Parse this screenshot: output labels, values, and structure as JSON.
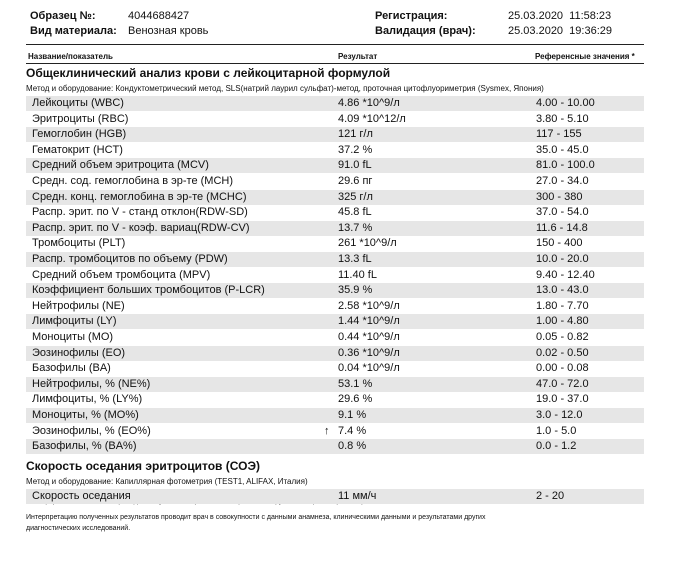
{
  "header": {
    "sample_label": "Образец №:",
    "sample_value": "4044688427",
    "material_label": "Вид материала:",
    "material_value": "Венозная кровь",
    "registration_label": "Регистрация:",
    "registration_value": "25.03.2020  11:58:23",
    "validation_label": "Валидация (врач):",
    "validation_value": "25.03.2020  19:36:29"
  },
  "columns": {
    "name": "Название/показатель",
    "result": "Результат",
    "reference": "Референсные значения *"
  },
  "sections": [
    {
      "title": "Общеклинический анализ крови с лейкоцитарной формулой",
      "method": "Метод и оборудование:  Кондуктометрический метод, SLS(натрий лаурил сульфат)-метод, проточная цитофлуориметрия (Sysmex, Япония)",
      "rows": [
        {
          "name": "Лейкоциты (WBC)",
          "result": "4.86 *10^9/л",
          "reference": "4.00 - 10.00"
        },
        {
          "name": "Эритроциты (RBC)",
          "result": "4.09 *10^12/л",
          "reference": "3.80 - 5.10"
        },
        {
          "name": "Гемоглобин (HGB)",
          "result": "121 г/л",
          "reference": "117 - 155"
        },
        {
          "name": "Гематокрит (HCT)",
          "result": "37.2 %",
          "reference": "35.0 - 45.0"
        },
        {
          "name": "Средний объем эритроцита (MCV)",
          "result": "91.0 fL",
          "reference": "81.0 - 100.0"
        },
        {
          "name": "Средн. сод. гемоглобина в эр-те (MCH)",
          "result": "29.6 пг",
          "reference": "27.0 - 34.0"
        },
        {
          "name": "Средн. конц. гемоглобина в эр-те (MCHC)",
          "result": "325 г/л",
          "reference": "300 - 380"
        },
        {
          "name": "Распр. эрит. по V - станд отклон(RDW-SD)",
          "result": "45.8 fL",
          "reference": "37.0 - 54.0"
        },
        {
          "name": "Распр. эрит. по V - коэф. вариац(RDW-CV)",
          "result": "13.7 %",
          "reference": "11.6 - 14.8"
        },
        {
          "name": "Тромбоциты (PLT)",
          "result": "261 *10^9/л",
          "reference": "150 - 400"
        },
        {
          "name": "Распр. тромбоцитов по объему (PDW)",
          "result": "13.3 fL",
          "reference": "10.0 - 20.0"
        },
        {
          "name": "Средний объем тромбоцита (MPV)",
          "result": "11.40 fL",
          "reference": "9.40 - 12.40"
        },
        {
          "name": "Коэффициент больших тромбоцитов (P-LCR)",
          "result": "35.9 %",
          "reference": "13.0 - 43.0"
        },
        {
          "name": "Нейтрофилы (NE)",
          "result": "2.58 *10^9/л",
          "reference": "1.80 - 7.70"
        },
        {
          "name": "Лимфоциты (LY)",
          "result": "1.44 *10^9/л",
          "reference": "1.00 - 4.80"
        },
        {
          "name": "Моноциты (MO)",
          "result": "0.44 *10^9/л",
          "reference": "0.05 - 0.82"
        },
        {
          "name": "Эозинофилы (EO)",
          "result": "0.36 *10^9/л",
          "reference": "0.02 - 0.50"
        },
        {
          "name": "Базофилы (BA)",
          "result": "0.04 *10^9/л",
          "reference": "0.00 - 0.08"
        },
        {
          "name": "Нейтрофилы, % (NE%)",
          "result": "53.1 %",
          "reference": "47.0 - 72.0"
        },
        {
          "name": "Лимфоциты, % (LY%)",
          "result": "29.6 %",
          "reference": "19.0 - 37.0"
        },
        {
          "name": "Моноциты, % (MO%)",
          "result": "9.1 %",
          "reference": "3.0 - 12.0"
        },
        {
          "name": "Эозинофилы, % (EO%)",
          "flag": "↑",
          "result": "7.4 %",
          "reference": "1.0 - 5.0"
        },
        {
          "name": "Базофилы, % (BA%)",
          "result": "0.8 %",
          "reference": "0.0 - 1.2"
        }
      ]
    },
    {
      "title": "Скорость оседания эритроцитов (СОЭ)",
      "method": "Метод и оборудование:  Капиллярная фотометрия (TEST1, ALIFAX, Италия)",
      "rows": [
        {
          "name": "Скорость оседания",
          "result": "11 мм/ч",
          "reference": "2 - 20"
        }
      ]
    }
  ],
  "footnote": "* - Референсные значения приводятся с учетом возраста, пола, фазы менструального цикла, срока беременности.",
  "interpretation": "Интерпретацию полученных результатов проводит врач в совокупности с данными анамнеза, клиническими данными и результатами других диагностических исследований."
}
